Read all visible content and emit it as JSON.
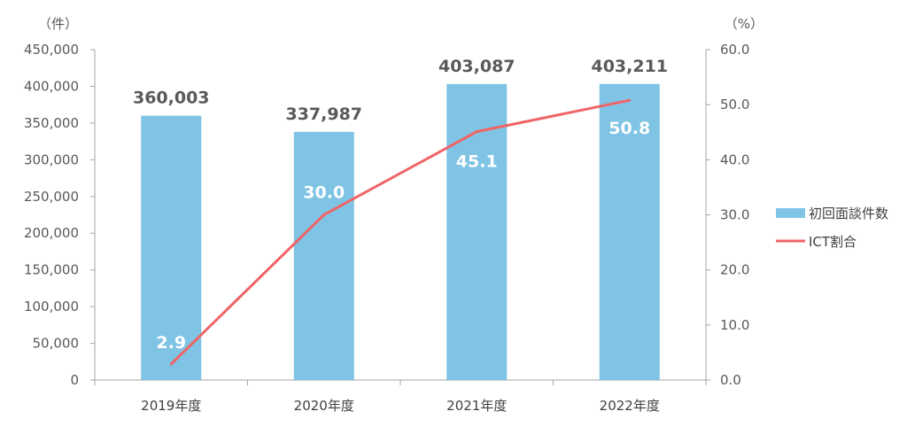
{
  "chart_data": {
    "type": "bar",
    "categories": [
      "2019年度",
      "2020年度",
      "2021年度",
      "2022年度"
    ],
    "series": [
      {
        "name": "初回面談件数",
        "kind": "bar",
        "axis": "left",
        "values": [
          360003,
          337987,
          403087,
          403211
        ],
        "labels": [
          "360,003",
          "337,987",
          "403,087",
          "403,211"
        ],
        "color": "#7fc4e4"
      },
      {
        "name": "ICT割合",
        "kind": "line",
        "axis": "right",
        "values": [
          2.9,
          30.0,
          45.1,
          50.8
        ],
        "labels": [
          "2.9",
          "30.0",
          "45.1",
          "50.8"
        ],
        "color": "#f06466"
      }
    ],
    "y_left": {
      "unit": "（件）",
      "ylim": [
        0,
        450000
      ],
      "ticks": [
        0,
        50000,
        100000,
        150000,
        200000,
        250000,
        300000,
        350000,
        400000,
        450000
      ],
      "tick_labels": [
        "0",
        "50,000",
        "100,000",
        "150,000",
        "200,000",
        "250,000",
        "300,000",
        "350,000",
        "400,000",
        "450,000"
      ]
    },
    "y_right": {
      "unit": "（%）",
      "ylim": [
        0,
        60
      ],
      "ticks": [
        0,
        10,
        20,
        30,
        40,
        50,
        60
      ],
      "tick_labels": [
        "0.0",
        "10.0",
        "20.0",
        "30.0",
        "40.0",
        "50.0",
        "60.0"
      ]
    },
    "grid": false,
    "legend_position": "right"
  }
}
